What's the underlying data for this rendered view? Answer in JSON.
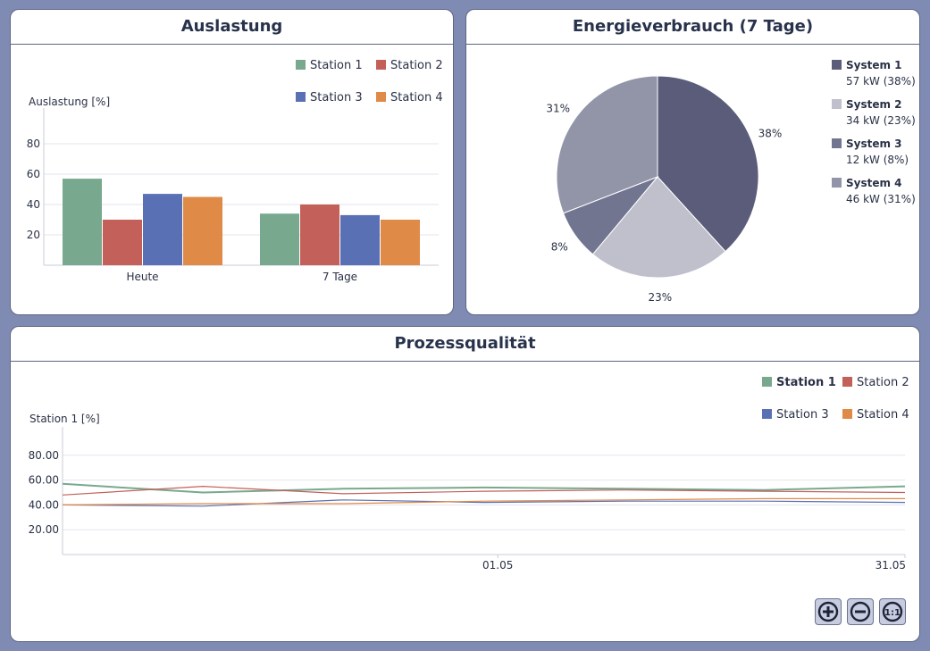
{
  "colors": {
    "station1": "#78a98f",
    "station2": "#c4605a",
    "station3": "#5a70b4",
    "station4": "#e08a48",
    "system1": "#5a5c7a",
    "system2": "#bfc0cc",
    "system3": "#727590",
    "system4": "#9294a8"
  },
  "auslastung": {
    "title": "Auslastung",
    "legend": [
      "Station 1",
      "Station 2",
      "Station 3",
      "Station 4"
    ],
    "chart_data": {
      "type": "bar",
      "title": "Auslastung",
      "ylabel": "Auslastung [%]",
      "categories": [
        "Heute",
        "7 Tage"
      ],
      "series": [
        {
          "name": "Station 1",
          "values": [
            57,
            34
          ]
        },
        {
          "name": "Station 2",
          "values": [
            30,
            40
          ]
        },
        {
          "name": "Station 3",
          "values": [
            47,
            33
          ]
        },
        {
          "name": "Station 4",
          "values": [
            45,
            30
          ]
        }
      ],
      "yticks": [
        "20",
        "40",
        "60",
        "80"
      ],
      "ylim": [
        0,
        100
      ]
    }
  },
  "energie": {
    "title": "Energieverbrauch (7 Tage)",
    "chart_data": {
      "type": "pie",
      "title": "Energieverbrauch (7 Tage)",
      "slices": [
        {
          "name": "System 1",
          "value": 57,
          "unit": "kW",
          "percent": "38%",
          "detail": "57 kW (38%)",
          "label": "38%"
        },
        {
          "name": "System 2",
          "value": 34,
          "unit": "kW",
          "percent": "23%",
          "detail": "34 kW (23%)",
          "label": "23%"
        },
        {
          "name": "System 3",
          "value": 12,
          "unit": "kW",
          "percent": "8%",
          "detail": "12 kW (8%)",
          "label": "8%"
        },
        {
          "name": "System 4",
          "value": 46,
          "unit": "kW",
          "percent": "31%",
          "detail": "46 kW (31%)",
          "label": "31%"
        }
      ]
    }
  },
  "prozess": {
    "title": "Prozessqualität",
    "legend": [
      "Station 1",
      "Station 2",
      "Station 3",
      "Station 4"
    ],
    "chart_data": {
      "type": "line",
      "title": "Prozessqualität",
      "ylabel": "Station 1 [%]",
      "x": [
        0,
        1,
        2,
        3,
        4,
        5,
        6
      ],
      "xticks": [
        {
          "x": 3.1,
          "label": "01.05"
        },
        {
          "x": 6,
          "label": "31.05"
        }
      ],
      "yticks": [
        "20.00",
        "40.00",
        "60.00",
        "80.00"
      ],
      "ylim": [
        0,
        100
      ],
      "series": [
        {
          "name": "Station 1",
          "values": [
            57,
            50,
            53,
            54,
            53,
            52,
            55
          ]
        },
        {
          "name": "Station 2",
          "values": [
            48,
            55,
            49,
            51,
            52,
            51,
            50
          ]
        },
        {
          "name": "Station 3",
          "values": [
            40,
            39,
            44,
            42,
            43,
            43,
            42
          ]
        },
        {
          "name": "Station 4",
          "values": [
            40,
            41,
            41,
            43,
            44,
            45,
            45
          ]
        }
      ]
    },
    "zoom": {
      "in": "+",
      "out": "−",
      "reset": "1:1"
    }
  }
}
